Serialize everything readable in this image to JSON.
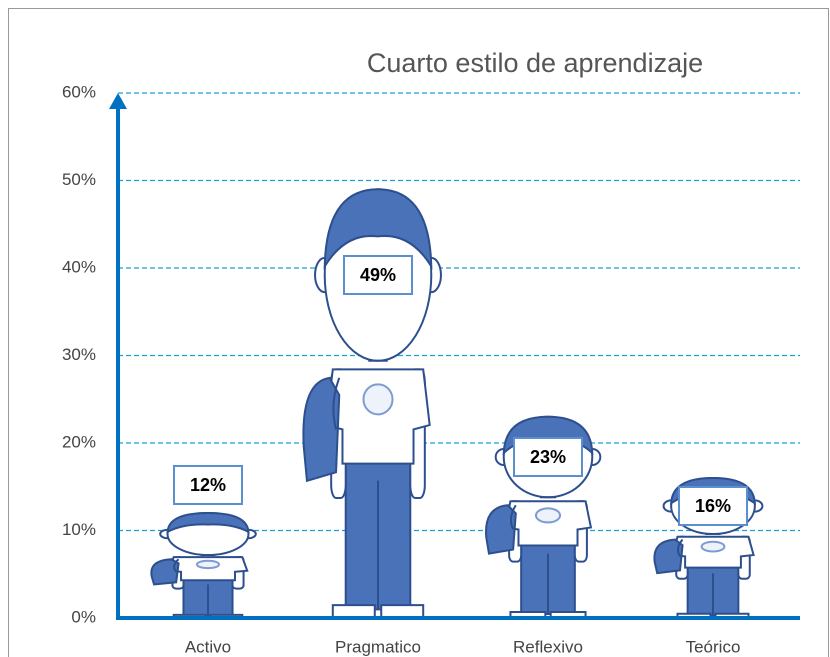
{
  "chart_data": {
    "type": "pictograph",
    "title": "Cuarto estilo de aprendizaje",
    "categories": [
      "Activo",
      "Pragmatico",
      "Reflexivo",
      "Teórico"
    ],
    "values": [
      12,
      49,
      23,
      16
    ],
    "value_labels": [
      "12%",
      "49%",
      "23%",
      "16%"
    ],
    "color": "#4a72b8",
    "ylim": [
      0,
      60
    ],
    "yticks": [
      {
        "value": 0,
        "label": "0%"
      },
      {
        "value": 10,
        "label": "10%"
      },
      {
        "value": 20,
        "label": "20%"
      },
      {
        "value": 30,
        "label": "30%"
      },
      {
        "value": 40,
        "label": "40%"
      },
      {
        "value": 50,
        "label": "50%"
      },
      {
        "value": 60,
        "label": "60%"
      }
    ],
    "grid": true
  }
}
